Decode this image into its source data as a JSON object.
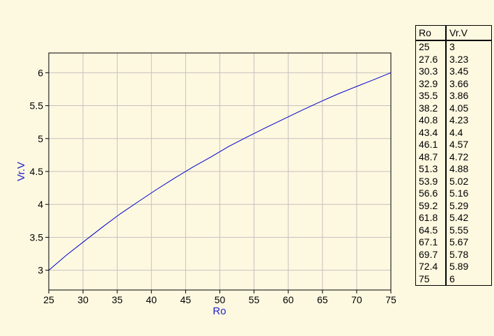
{
  "chart_data": {
    "type": "line",
    "title": "",
    "xlabel": "Ro",
    "ylabel": "Vr.V",
    "xlim": [
      25,
      75
    ],
    "ylim": [
      2.7,
      6.3
    ],
    "x_ticks": [
      "25",
      "30",
      "35",
      "40",
      "45",
      "50",
      "55",
      "60",
      "65",
      "70",
      "75"
    ],
    "y_ticks": [
      "3",
      "3.5",
      "4",
      "4.5",
      "5",
      "5.5",
      "6"
    ],
    "grid": true,
    "series": [
      {
        "color": "#0000cc",
        "x": [
          25,
          27.6,
          30.3,
          32.9,
          35.5,
          38.2,
          40.8,
          43.4,
          46.1,
          48.7,
          51.3,
          53.9,
          56.6,
          59.2,
          61.8,
          64.5,
          67.1,
          69.7,
          72.4,
          75
        ],
        "y": [
          3,
          3.23,
          3.45,
          3.66,
          3.86,
          4.05,
          4.23,
          4.4,
          4.57,
          4.72,
          4.88,
          5.02,
          5.16,
          5.29,
          5.42,
          5.55,
          5.67,
          5.78,
          5.89,
          6
        ]
      }
    ],
    "colors": {
      "background": "#fdf8e0",
      "grid": "#c8c0c0",
      "axis_label": "#2222cc",
      "line": "#0000cc"
    }
  },
  "table": {
    "headers": [
      "Ro",
      "Vr.V"
    ],
    "rows": [
      [
        "25",
        "3"
      ],
      [
        "27.6",
        "3.23"
      ],
      [
        "30.3",
        "3.45"
      ],
      [
        "32.9",
        "3.66"
      ],
      [
        "35.5",
        "3.86"
      ],
      [
        "38.2",
        "4.05"
      ],
      [
        "40.8",
        "4.23"
      ],
      [
        "43.4",
        "4.4"
      ],
      [
        "46.1",
        "4.57"
      ],
      [
        "48.7",
        "4.72"
      ],
      [
        "51.3",
        "4.88"
      ],
      [
        "53.9",
        "5.02"
      ],
      [
        "56.6",
        "5.16"
      ],
      [
        "59.2",
        "5.29"
      ],
      [
        "61.8",
        "5.42"
      ],
      [
        "64.5",
        "5.55"
      ],
      [
        "67.1",
        "5.67"
      ],
      [
        "69.7",
        "5.78"
      ],
      [
        "72.4",
        "5.89"
      ],
      [
        "75",
        "6"
      ]
    ]
  }
}
